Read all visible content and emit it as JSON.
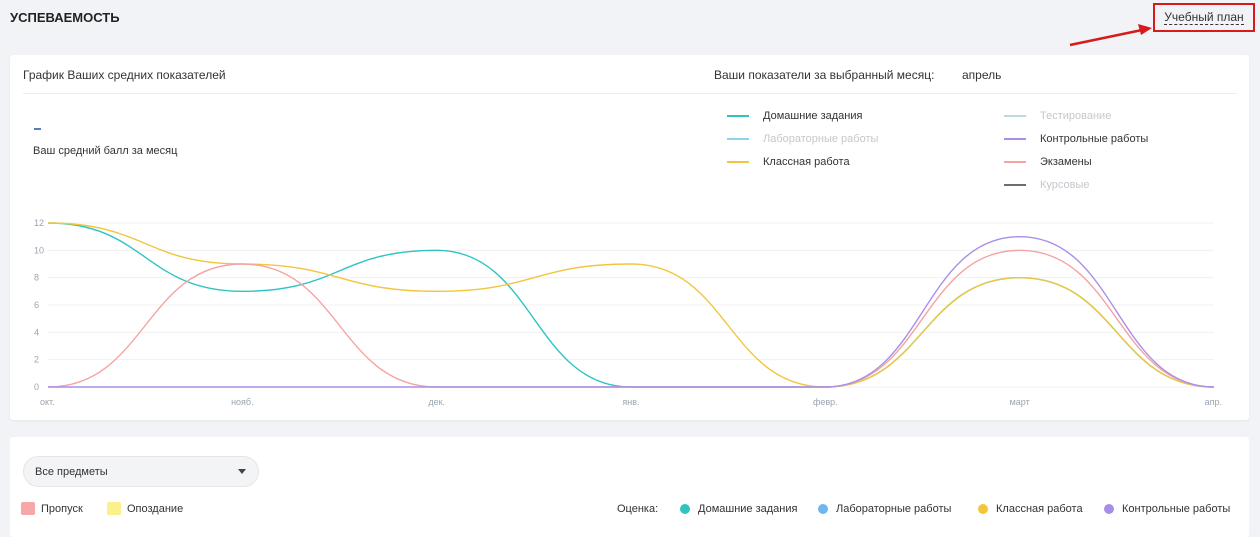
{
  "header": {
    "title": "УСПЕВАЕМОСТЬ",
    "plan_link": "Учебный план"
  },
  "chart_card": {
    "title": "График Ваших средних показателей",
    "month_label": "Ваши показатели за выбранный месяц:",
    "month_value": "апрель",
    "avg_label": "Ваш средний балл за месяц"
  },
  "legend": [
    {
      "label": "Домашние задания",
      "color": "#2ec4c4",
      "active": true
    },
    {
      "label": "Лабораторные работы",
      "color": "#8ed3e8",
      "active": false
    },
    {
      "label": "Классная работа",
      "color": "#f2c53d",
      "active": true
    },
    {
      "label": "Тестирование",
      "color": "#b9dbe0",
      "active": false
    },
    {
      "label": "Контрольные работы",
      "color": "#a98ee8",
      "active": true
    },
    {
      "label": "Экзамены",
      "color": "#f5a3a3",
      "active": true
    },
    {
      "label": "Курсовые",
      "color": "#6d6d6d",
      "active": false
    }
  ],
  "chart_data": {
    "type": "line",
    "categories": [
      "окт.",
      "нояб.",
      "дек.",
      "янв.",
      "февр.",
      "март",
      "апр."
    ],
    "y_ticks": [
      0,
      2,
      4,
      6,
      8,
      10,
      12
    ],
    "ylim": [
      0,
      12
    ],
    "grid": true,
    "series": [
      {
        "name": "Домашние задания",
        "color": "#2ec4c4",
        "values": [
          12,
          7,
          10,
          0,
          0,
          8,
          0
        ]
      },
      {
        "name": "Классная работа",
        "color": "#f2c53d",
        "values": [
          12,
          9,
          7,
          9,
          0,
          8,
          0
        ]
      },
      {
        "name": "Экзамены",
        "color": "#f5a3a3",
        "values": [
          0,
          9,
          0,
          0,
          0,
          10,
          0
        ]
      },
      {
        "name": "Контрольные работы",
        "color": "#a98ee8",
        "values": [
          0,
          0,
          0,
          0,
          0,
          11,
          0
        ]
      }
    ]
  },
  "filters": {
    "subject_select": "Все предметы",
    "attendance": [
      {
        "label": "Пропуск",
        "color": "#f7a7a7"
      },
      {
        "label": "Опоздание",
        "color": "#fbf08a"
      }
    ],
    "grade_label": "Оценка:",
    "grades": [
      {
        "label": "Домашние задания",
        "color": "#2ec4c4"
      },
      {
        "label": "Лабораторные работы",
        "color": "#6fb6ee"
      },
      {
        "label": "Классная работа",
        "color": "#f2c53d"
      },
      {
        "label": "Контрольные работы",
        "color": "#a98ee8"
      }
    ]
  }
}
